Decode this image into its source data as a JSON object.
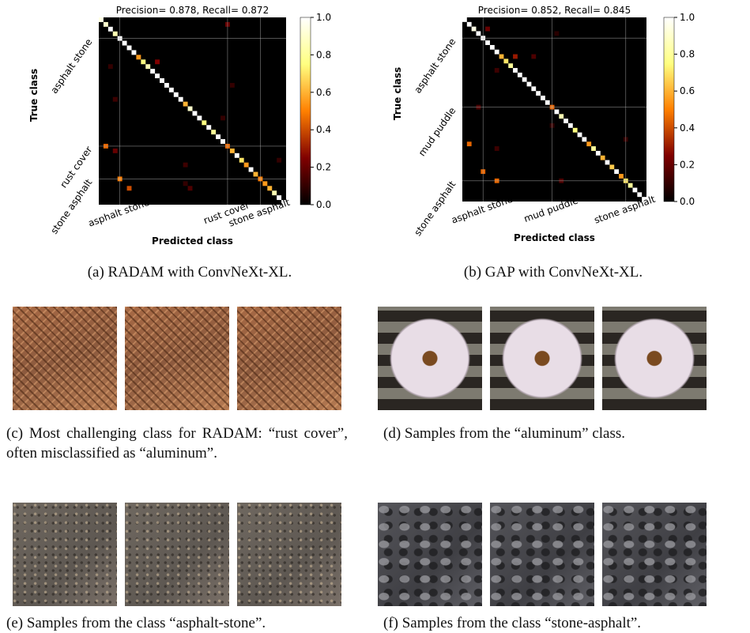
{
  "panels": [
    {
      "chart": {
        "type": "heatmap",
        "title": "Precision= 0.878, Recall= 0.872",
        "xlabel": "Predicted class",
        "ylabel": "True class",
        "colormap": "afmhot",
        "xticks": [
          {
            "value": 4,
            "label": "asphalt stone"
          },
          {
            "value": 27,
            "label": "rust cover"
          },
          {
            "value": 34,
            "label": "stone asphalt"
          }
        ],
        "yticks": [
          {
            "value": 4,
            "label": "asphalt stone"
          },
          {
            "value": 27,
            "label": "rust cover"
          },
          {
            "value": 34,
            "label": "stone asphalt"
          }
        ],
        "diagonal": [
          0.95,
          0.9,
          1,
          0.85,
          1,
          1,
          1,
          1,
          0.55,
          0.75,
          0.85,
          1,
          1,
          1,
          1,
          1,
          1,
          1,
          0.6,
          0.9,
          1,
          1,
          0.75,
          1,
          0.8,
          1,
          1,
          0.45,
          0.6,
          1,
          0.7,
          0.55,
          1,
          0.6,
          0.5,
          0.55,
          0.6,
          0.85,
          1,
          1
        ],
        "off_diagonal": [
          {
            "true": 1,
            "pred": 27,
            "value": 0.2
          },
          {
            "true": 9,
            "pred": 12,
            "value": 0.25
          },
          {
            "true": 10,
            "pred": 2,
            "value": 0.1
          },
          {
            "true": 17,
            "pred": 3,
            "value": 0.12
          },
          {
            "true": 21,
            "pred": 26,
            "value": 0.1
          },
          {
            "true": 27,
            "pred": 1,
            "value": 0.45
          },
          {
            "true": 28,
            "pred": 3,
            "value": 0.2
          },
          {
            "true": 31,
            "pred": 18,
            "value": 0.12
          },
          {
            "true": 34,
            "pred": 4,
            "value": 0.5
          },
          {
            "true": 35,
            "pred": 18,
            "value": 0.1
          },
          {
            "true": 36,
            "pred": 6,
            "value": 0.4
          },
          {
            "true": 36,
            "pred": 19,
            "value": 0.15
          },
          {
            "true": 30,
            "pred": 38,
            "value": 0.1
          },
          {
            "true": 14,
            "pred": 28,
            "value": 0.1
          }
        ],
        "clim": [
          0,
          1
        ],
        "cticks": [
          {
            "value": 0,
            "label": "0.0"
          },
          0.2,
          0.4,
          0.6,
          0.8,
          {
            "value": 1,
            "label": "1.0"
          }
        ]
      },
      "caption": "(a) RADAM with ConvNeXt-XL."
    },
    {
      "chart": {
        "type": "heatmap",
        "title": "Precision= 0.852, Recall= 0.845",
        "xlabel": "Predicted class",
        "ylabel": "True class",
        "colormap": "afmhot",
        "xticks": [
          {
            "value": 4,
            "label": "asphalt stone"
          },
          {
            "value": 19,
            "label": "mud puddle"
          },
          {
            "value": 35,
            "label": "stone asphalt"
          }
        ],
        "yticks": [
          {
            "value": 4,
            "label": "asphalt stone"
          },
          {
            "value": 19,
            "label": "mud puddle"
          },
          {
            "value": 35,
            "label": "stone asphalt"
          }
        ],
        "diagonal": [
          1,
          1,
          0.95,
          1,
          1,
          1,
          1,
          1,
          0.6,
          0.7,
          0.8,
          1,
          1,
          1,
          1,
          1,
          1,
          1,
          1,
          0.45,
          1,
          0.85,
          1,
          1,
          0.75,
          1,
          1,
          0.55,
          0.8,
          1,
          0.6,
          1,
          0.65,
          1,
          0.55,
          0.7,
          0.8,
          1,
          1,
          1
        ],
        "off_diagonal": [
          {
            "true": 2,
            "pred": 5,
            "value": 0.2
          },
          {
            "true": 8,
            "pred": 11,
            "value": 0.3
          },
          {
            "true": 8,
            "pred": 15,
            "value": 0.15
          },
          {
            "true": 11,
            "pred": 7,
            "value": 0.12
          },
          {
            "true": 19,
            "pred": 3,
            "value": 0.15
          },
          {
            "true": 27,
            "pred": 1,
            "value": 0.45
          },
          {
            "true": 28,
            "pred": 7,
            "value": 0.12
          },
          {
            "true": 33,
            "pred": 4,
            "value": 0.45
          },
          {
            "true": 35,
            "pred": 7,
            "value": 0.45
          },
          {
            "true": 35,
            "pred": 21,
            "value": 0.15
          },
          {
            "true": 23,
            "pred": 19,
            "value": 0.1
          },
          {
            "true": 26,
            "pred": 35,
            "value": 0.1
          },
          {
            "true": 3,
            "pred": 20,
            "value": 0.08
          }
        ],
        "clim": [
          0,
          1
        ],
        "cticks": [
          {
            "value": 0,
            "label": "0.0"
          },
          0.2,
          0.4,
          0.6,
          0.8,
          {
            "value": 1,
            "label": "1.0"
          }
        ]
      },
      "caption": "(b) GAP with ConvNeXt-XL."
    }
  ],
  "photo_panels": [
    {
      "caption": "(c) Most challenging class for RADAM: “rust cover”, often misclassified as “aluminum”."
    },
    {
      "caption": "(d) Samples from the “aluminum” class."
    },
    {
      "caption": "(e) Samples from the class “asphalt-stone”."
    },
    {
      "caption": "(f) Samples from the class “stone-asphalt”."
    }
  ]
}
